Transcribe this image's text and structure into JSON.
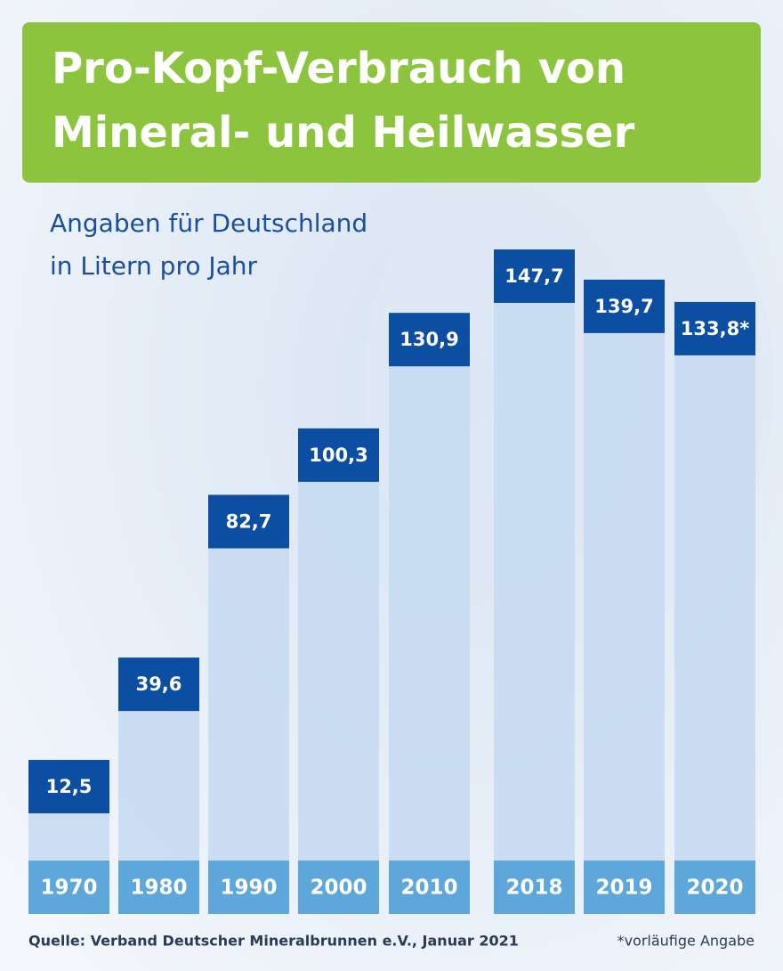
{
  "chart_data": {
    "type": "bar",
    "title": [
      "Pro-Kopf-Verbrauch von",
      "Mineral- und Heilwasser"
    ],
    "subtitle": [
      "Angaben für Deutschland",
      "in Litern pro Jahr"
    ],
    "categories": [
      "1970",
      "1980",
      "1990",
      "2000",
      "2010",
      "2018",
      "2019",
      "2020"
    ],
    "values": [
      12.5,
      39.6,
      82.7,
      100.3,
      130.9,
      147.7,
      139.7,
      133.8
    ],
    "value_labels": [
      "12,5",
      "39,6",
      "82,7",
      "100,3",
      "130,9",
      "147,7",
      "139,7",
      "133,8*"
    ],
    "color": "#c4d9f1",
    "label_color": "#0c4ea2",
    "category_color": "#5ea7da",
    "source": "Quelle: Verband Deutscher Mineralbrunnen e.V., Januar 2021",
    "footnote": "*vorläufige Angabe"
  }
}
